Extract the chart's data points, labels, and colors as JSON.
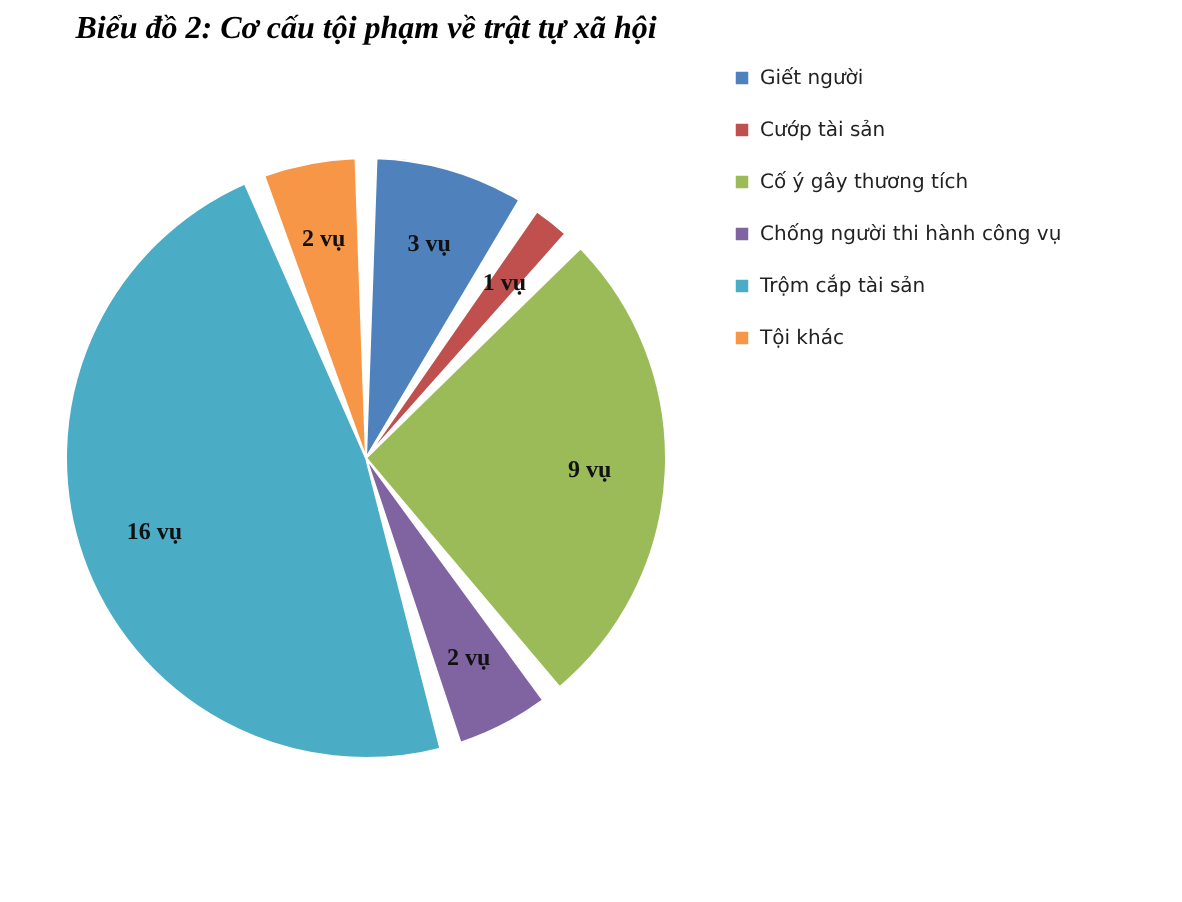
{
  "chart_data": {
    "type": "pie",
    "title": "Biểu đồ 2: Cơ cấu tội phạm về trật tự xã hội",
    "categories": [
      "Giết người",
      "Cướp tài sản",
      "Cố ý gây thương tích",
      "Chống người thi hành công vụ",
      "Trộm cắp tài sản",
      "Tội khác"
    ],
    "values": [
      3,
      1,
      9,
      2,
      16,
      2
    ],
    "colors": [
      "#4f81bd",
      "#c0504d",
      "#9bbb59",
      "#8064a2",
      "#4bacc6",
      "#f79646"
    ],
    "value_labels": [
      "3 vụ",
      "1 vụ",
      "9 vụ",
      "2 vụ",
      "16 vụ",
      "2 vụ"
    ],
    "legend": "right"
  }
}
